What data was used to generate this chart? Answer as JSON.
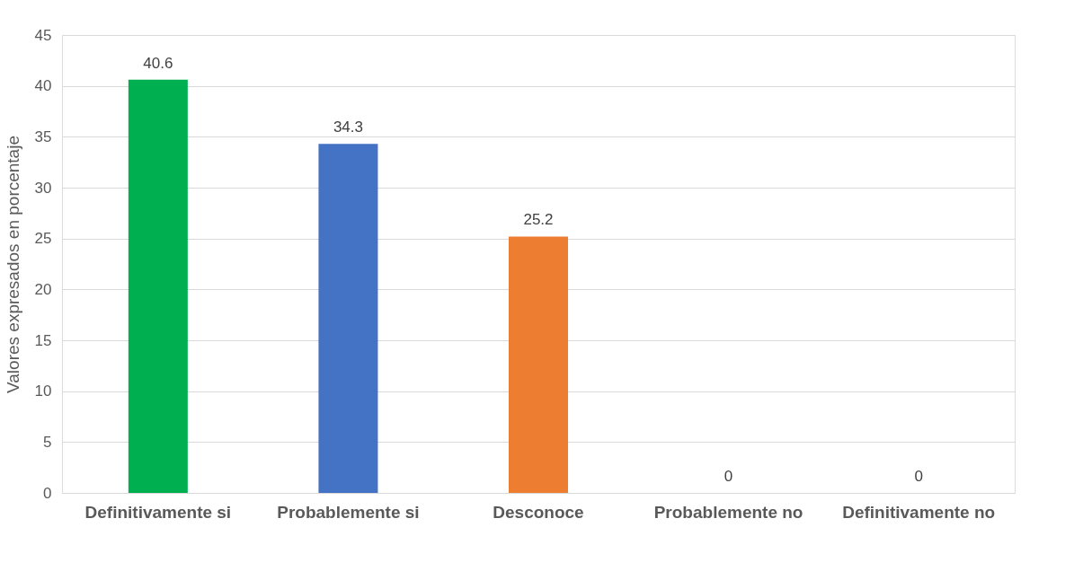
{
  "chart_data": {
    "type": "bar",
    "ylabel": "Valores expresados en porcentaje",
    "categories": [
      "Definitivamente si",
      "Probablemente si",
      "Desconoce",
      "Probablemente no",
      "Definitivamente no"
    ],
    "values": [
      40.6,
      34.3,
      25.2,
      0,
      0
    ],
    "colors": [
      "#00b050",
      "#4472c4",
      "#ed7d31",
      "#a5a5a5",
      "#ffc000"
    ],
    "ylim": [
      0,
      45
    ],
    "yticks": [
      0,
      5,
      10,
      15,
      20,
      25,
      30,
      35,
      40,
      45
    ],
    "grid": "y",
    "data_labels": true
  }
}
